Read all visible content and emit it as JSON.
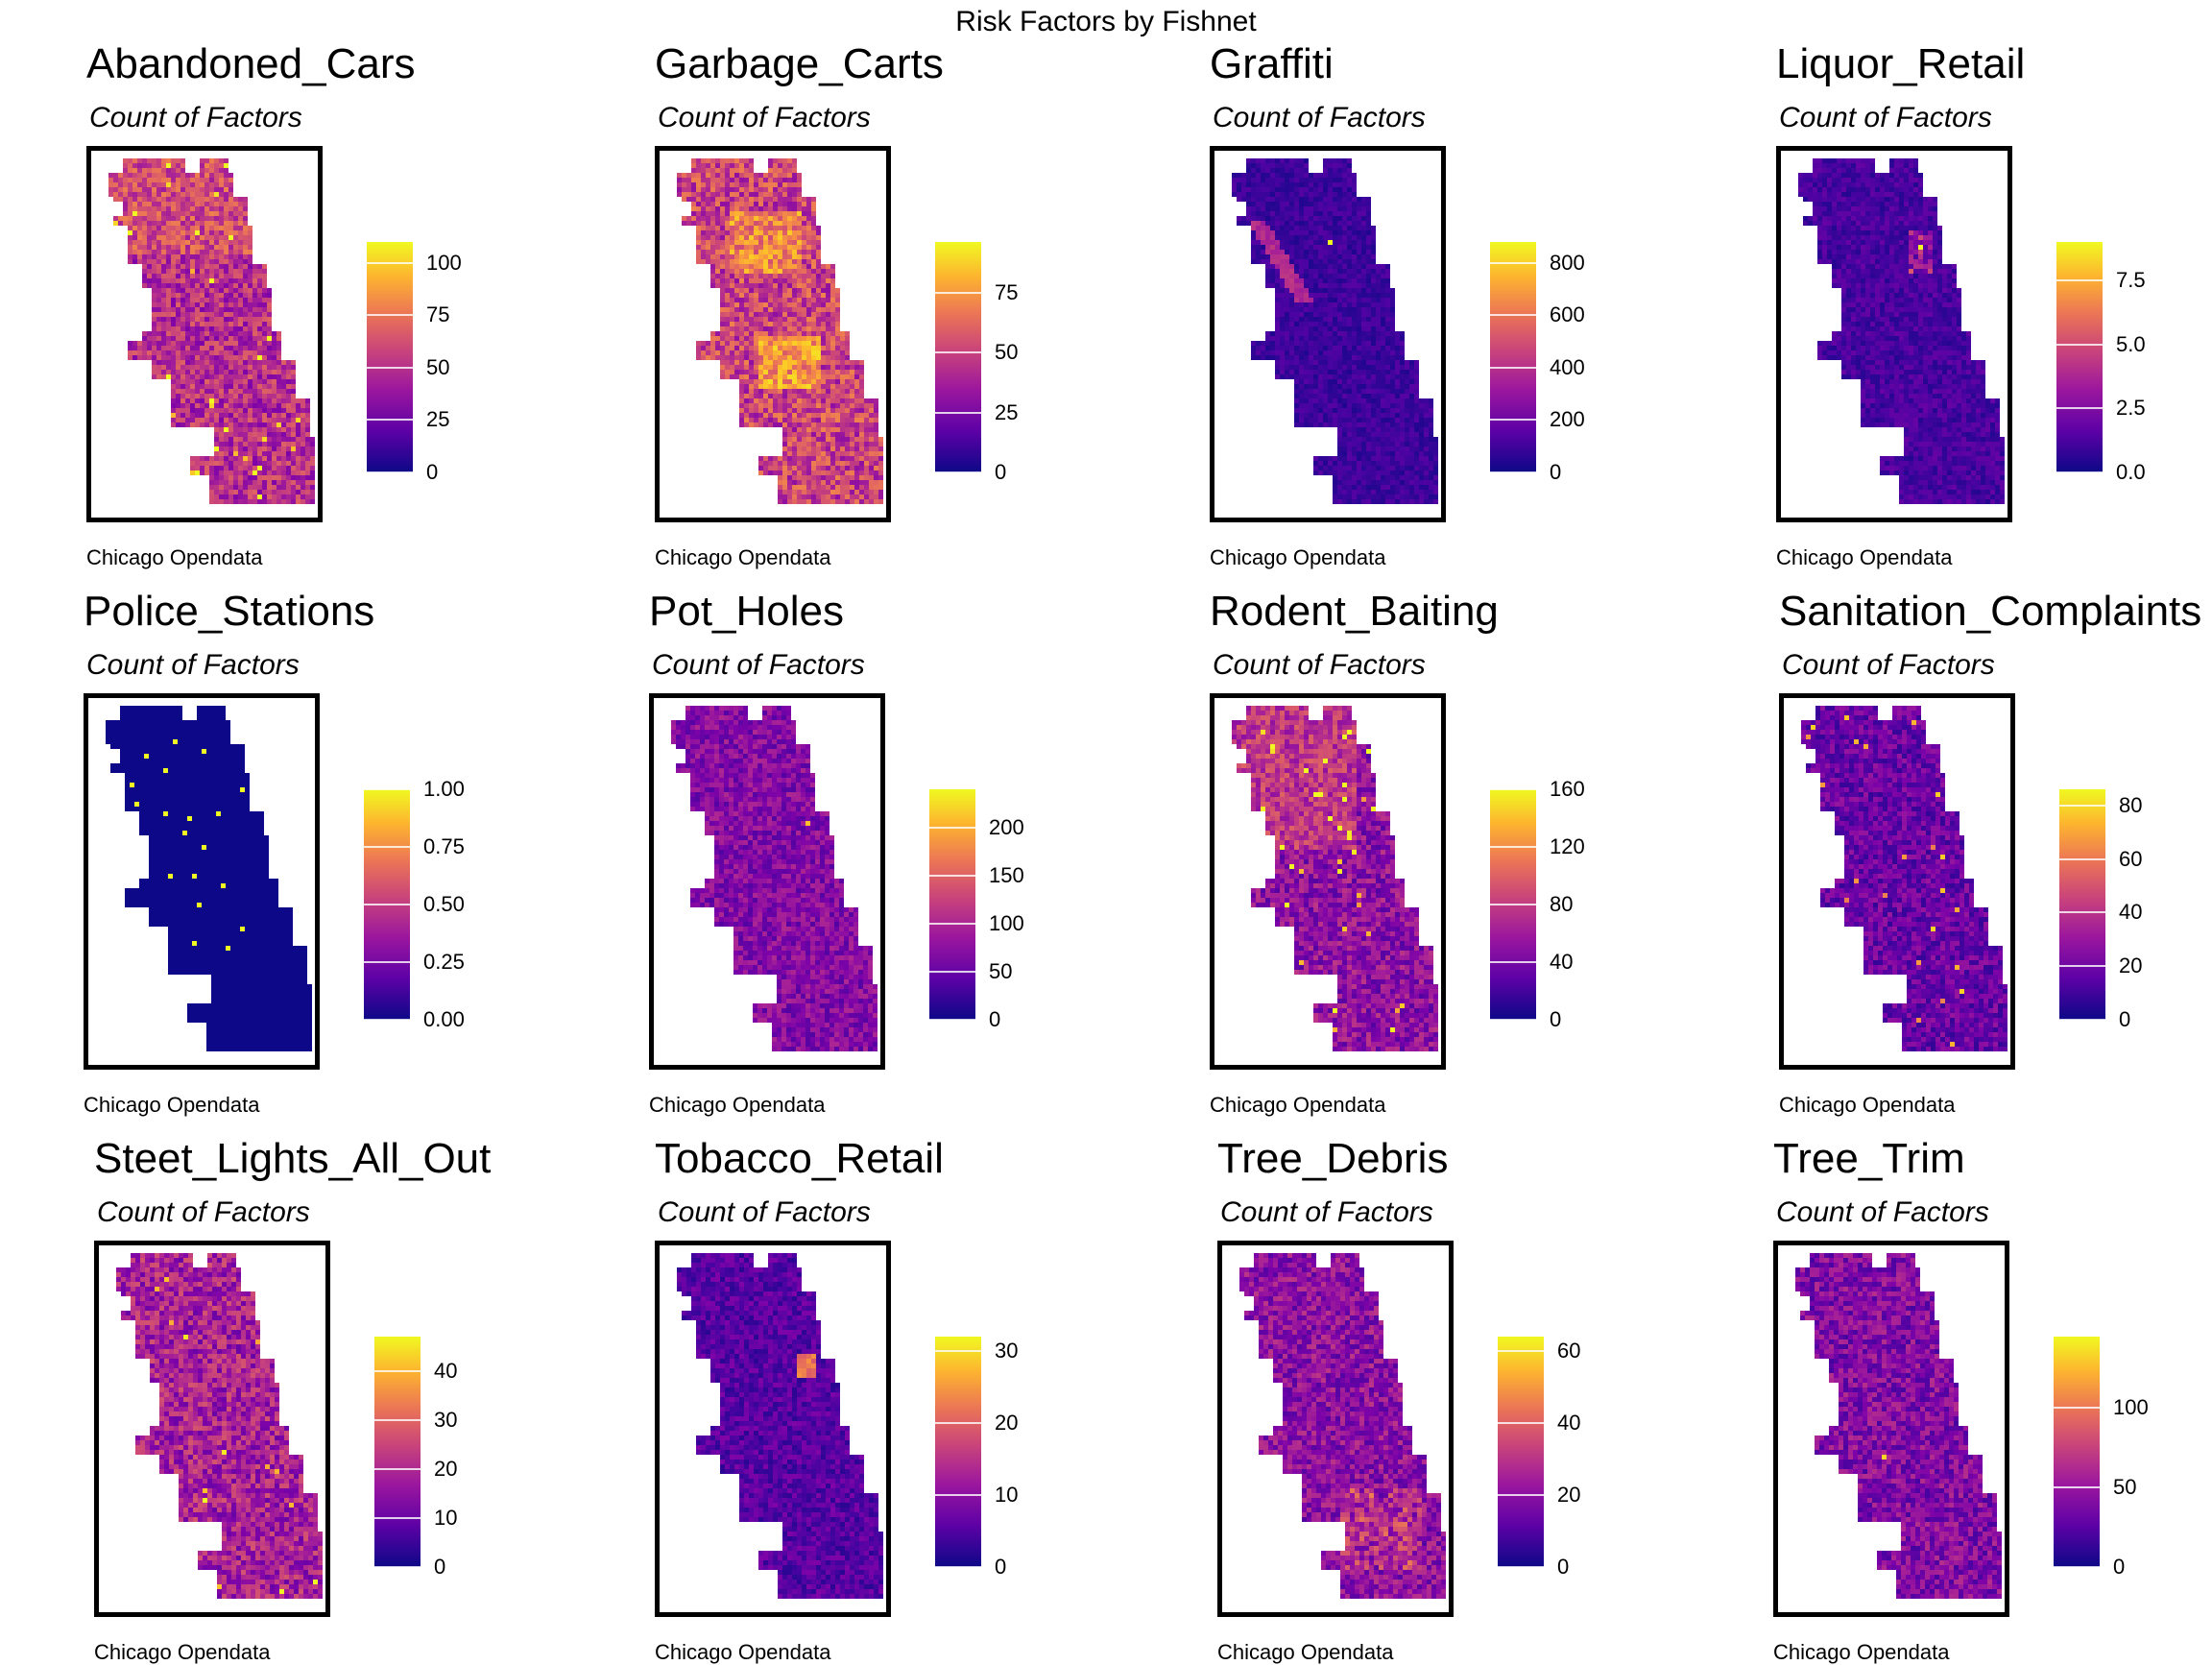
{
  "title": "Risk Factors by Fishnet",
  "caption": "Chicago Opendata",
  "colors": {
    "palette_low": "#0d0887",
    "palette_high": "#f0f921",
    "border": "#000000"
  },
  "chart_data": [
    {
      "type": "heatmap",
      "title": "Abandoned_Cars",
      "subtitle": "Count of Factors",
      "caption": "Chicago Opendata",
      "max": 110,
      "ticks": [
        "0",
        "25",
        "50",
        "75",
        "100"
      ],
      "tick_values": [
        0,
        25,
        50,
        75,
        100
      ]
    },
    {
      "type": "heatmap",
      "title": "Garbage_Carts",
      "subtitle": "Count of Factors",
      "caption": "Chicago Opendata",
      "max": 96,
      "ticks": [
        "0",
        "25",
        "50",
        "75"
      ],
      "tick_values": [
        0,
        25,
        50,
        75
      ]
    },
    {
      "type": "heatmap",
      "title": "Graffiti",
      "subtitle": "Count of Factors",
      "caption": "Chicago Opendata",
      "max": 880,
      "ticks": [
        "0",
        "200",
        "400",
        "600",
        "800"
      ],
      "tick_values": [
        0,
        200,
        400,
        600,
        800
      ]
    },
    {
      "type": "heatmap",
      "title": "Liquor_Retail",
      "subtitle": "Count of Factors",
      "caption": "Chicago Opendata",
      "max": 9,
      "ticks": [
        "0.0",
        "2.5",
        "5.0",
        "7.5"
      ],
      "tick_values": [
        0,
        2.5,
        5,
        7.5
      ]
    },
    {
      "type": "heatmap",
      "title": "Police_Stations",
      "subtitle": "Count of Factors",
      "caption": "Chicago Opendata",
      "max": 1,
      "ticks": [
        "0.00",
        "0.25",
        "0.50",
        "0.75",
        "1.00"
      ],
      "tick_values": [
        0,
        0.25,
        0.5,
        0.75,
        1
      ]
    },
    {
      "type": "heatmap",
      "title": "Pot_Holes",
      "subtitle": "Count of Factors",
      "caption": "Chicago Opendata",
      "max": 240,
      "ticks": [
        "0",
        "50",
        "100",
        "150",
        "200"
      ],
      "tick_values": [
        0,
        50,
        100,
        150,
        200
      ]
    },
    {
      "type": "heatmap",
      "title": "Rodent_Baiting",
      "subtitle": "Count of Factors",
      "caption": "Chicago Opendata",
      "max": 160,
      "ticks": [
        "0",
        "40",
        "80",
        "120",
        "160"
      ],
      "tick_values": [
        0,
        40,
        80,
        120,
        160
      ]
    },
    {
      "type": "heatmap",
      "title": "Sanitation_Complaints",
      "subtitle": "Count of Factors",
      "caption": "Chicago Opendata",
      "max": 86,
      "ticks": [
        "0",
        "20",
        "40",
        "60",
        "80"
      ],
      "tick_values": [
        0,
        20,
        40,
        60,
        80
      ]
    },
    {
      "type": "heatmap",
      "title": "Steet_Lights_All_Out",
      "subtitle": "Count of Factors",
      "caption": "Chicago Opendata",
      "max": 47,
      "ticks": [
        "0",
        "10",
        "20",
        "30",
        "40"
      ],
      "tick_values": [
        0,
        10,
        20,
        30,
        40
      ]
    },
    {
      "type": "heatmap",
      "title": "Tobacco_Retail",
      "subtitle": "Count of Factors",
      "caption": "Chicago Opendata",
      "max": 32,
      "ticks": [
        "0",
        "10",
        "20",
        "30"
      ],
      "tick_values": [
        0,
        10,
        20,
        30
      ]
    },
    {
      "type": "heatmap",
      "title": "Tree_Debris",
      "subtitle": "Count of Factors",
      "caption": "Chicago Opendata",
      "max": 64,
      "ticks": [
        "0",
        "20",
        "40",
        "60"
      ],
      "tick_values": [
        0,
        20,
        40,
        60
      ]
    },
    {
      "type": "heatmap",
      "title": "Tree_Trim",
      "subtitle": "Count of Factors",
      "caption": "Chicago Opendata",
      "max": 145,
      "ticks": [
        "0",
        "50",
        "100"
      ],
      "tick_values": [
        0,
        50,
        100
      ]
    }
  ]
}
